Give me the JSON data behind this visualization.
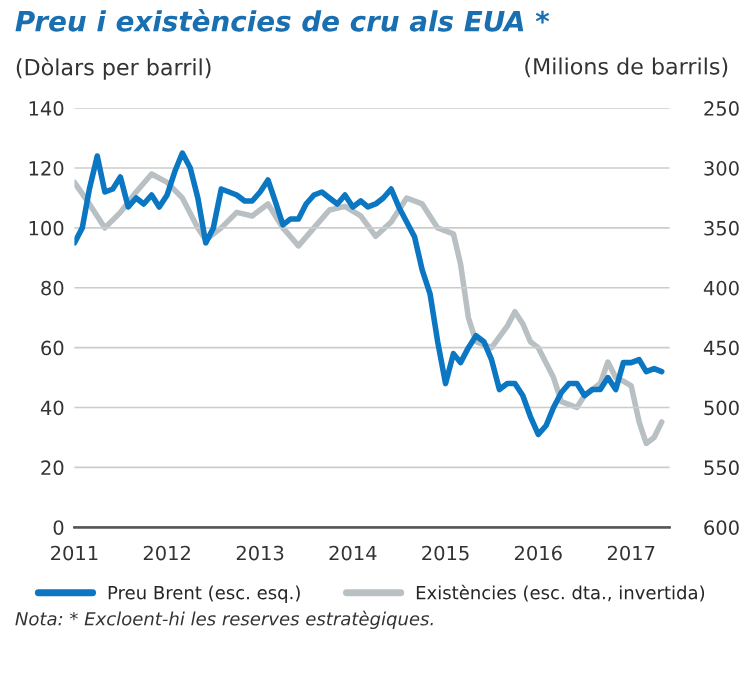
{
  "chart_data": {
    "type": "line",
    "title": "Preu i existències de cru als EUA *",
    "ylabel": "(Dòlars per barril)",
    "y2label": "(Milions de barrils)",
    "annotations": [
      "Nota: * Excloent-hi les reserves estratègiques."
    ],
    "xlim": [
      "2011-01",
      "2017-06"
    ],
    "xticks": [
      {
        "value": "2011-01",
        "label": "2011"
      },
      {
        "value": "2012-01",
        "label": "2012"
      },
      {
        "value": "2013-01",
        "label": "2013"
      },
      {
        "value": "2014-01",
        "label": "2014"
      },
      {
        "value": "2015-01",
        "label": "2015"
      },
      {
        "value": "2016-01",
        "label": "2016"
      },
      {
        "value": "2017-01",
        "label": "2017"
      }
    ],
    "ylim": [
      0,
      140
    ],
    "yticks": [
      0,
      20,
      40,
      60,
      80,
      100,
      120,
      140
    ],
    "y2lim": [
      600,
      250
    ],
    "y2ticks": [
      250,
      300,
      350,
      400,
      450,
      500,
      550,
      600
    ],
    "grid": "y",
    "legend": "bottom",
    "line_style": "solid",
    "marker": "none",
    "series": [
      {
        "name": "Preu Brent (esc. esq.)",
        "color": "#0b77c2",
        "x": [
          "2011-01",
          "2011-02",
          "2011-03",
          "2011-04",
          "2011-05",
          "2011-06",
          "2011-07",
          "2011-08",
          "2011-09",
          "2011-10",
          "2011-11",
          "2011-12",
          "2012-01",
          "2012-02",
          "2012-03",
          "2012-04",
          "2012-05",
          "2012-06",
          "2012-07",
          "2012-08",
          "2012-09",
          "2012-10",
          "2012-11",
          "2012-12",
          "2013-01",
          "2013-02",
          "2013-03",
          "2013-04",
          "2013-05",
          "2013-06",
          "2013-07",
          "2013-08",
          "2013-09",
          "2013-10",
          "2013-11",
          "2013-12",
          "2014-01",
          "2014-02",
          "2014-03",
          "2014-04",
          "2014-05",
          "2014-06",
          "2014-07",
          "2014-08",
          "2014-09",
          "2014-10",
          "2014-11",
          "2014-12",
          "2015-01",
          "2015-02",
          "2015-03",
          "2015-04",
          "2015-05",
          "2015-06",
          "2015-07",
          "2015-08",
          "2015-09",
          "2015-10",
          "2015-11",
          "2015-12",
          "2016-01",
          "2016-02",
          "2016-03",
          "2016-04",
          "2016-05",
          "2016-06",
          "2016-07",
          "2016-08",
          "2016-09",
          "2016-10",
          "2016-11",
          "2016-12",
          "2017-01",
          "2017-02",
          "2017-03",
          "2017-04",
          "2017-05"
        ],
        "values": [
          95,
          100,
          113,
          124,
          112,
          113,
          117,
          107,
          110,
          108,
          111,
          107,
          111,
          119,
          125,
          120,
          110,
          95,
          100,
          113,
          112,
          111,
          109,
          109,
          112,
          116,
          109,
          101,
          103,
          103,
          108,
          111,
          112,
          110,
          108,
          111,
          107,
          109,
          107,
          108,
          110,
          113,
          107,
          102,
          97,
          86,
          78,
          62,
          48,
          58,
          55,
          60,
          64,
          62,
          56,
          46,
          48,
          48,
          44,
          37,
          31,
          34,
          40,
          45,
          48,
          48,
          44,
          46,
          46,
          50,
          46,
          55,
          55,
          56,
          52,
          53,
          52
        ]
      },
      {
        "name": "Existències (esc. dta., invertida)",
        "color": "#b8c0c4",
        "axis": "y2",
        "x": [
          "2011-01",
          "2011-03",
          "2011-05",
          "2011-07",
          "2011-09",
          "2011-11",
          "2012-01",
          "2012-03",
          "2012-05",
          "2012-06",
          "2012-08",
          "2012-10",
          "2012-12",
          "2013-02",
          "2013-04",
          "2013-06",
          "2013-08",
          "2013-10",
          "2013-12",
          "2014-02",
          "2014-04",
          "2014-06",
          "2014-08",
          "2014-10",
          "2014-12",
          "2015-02",
          "2015-03",
          "2015-04",
          "2015-05",
          "2015-07",
          "2015-09",
          "2015-10",
          "2015-11",
          "2015-12",
          "2016-01",
          "2016-03",
          "2016-04",
          "2016-06",
          "2016-07",
          "2016-09",
          "2016-10",
          "2016-11",
          "2016-12",
          "2017-01",
          "2017-02",
          "2017-03",
          "2017-04",
          "2017-05"
        ],
        "values": [
          312,
          330,
          350,
          337,
          320,
          305,
          312,
          325,
          350,
          360,
          350,
          337,
          340,
          330,
          350,
          365,
          350,
          335,
          332,
          340,
          357,
          345,
          325,
          330,
          350,
          355,
          380,
          425,
          445,
          450,
          432,
          420,
          430,
          445,
          450,
          475,
          495,
          500,
          490,
          480,
          462,
          475,
          478,
          482,
          512,
          530,
          525,
          512
        ]
      }
    ]
  }
}
